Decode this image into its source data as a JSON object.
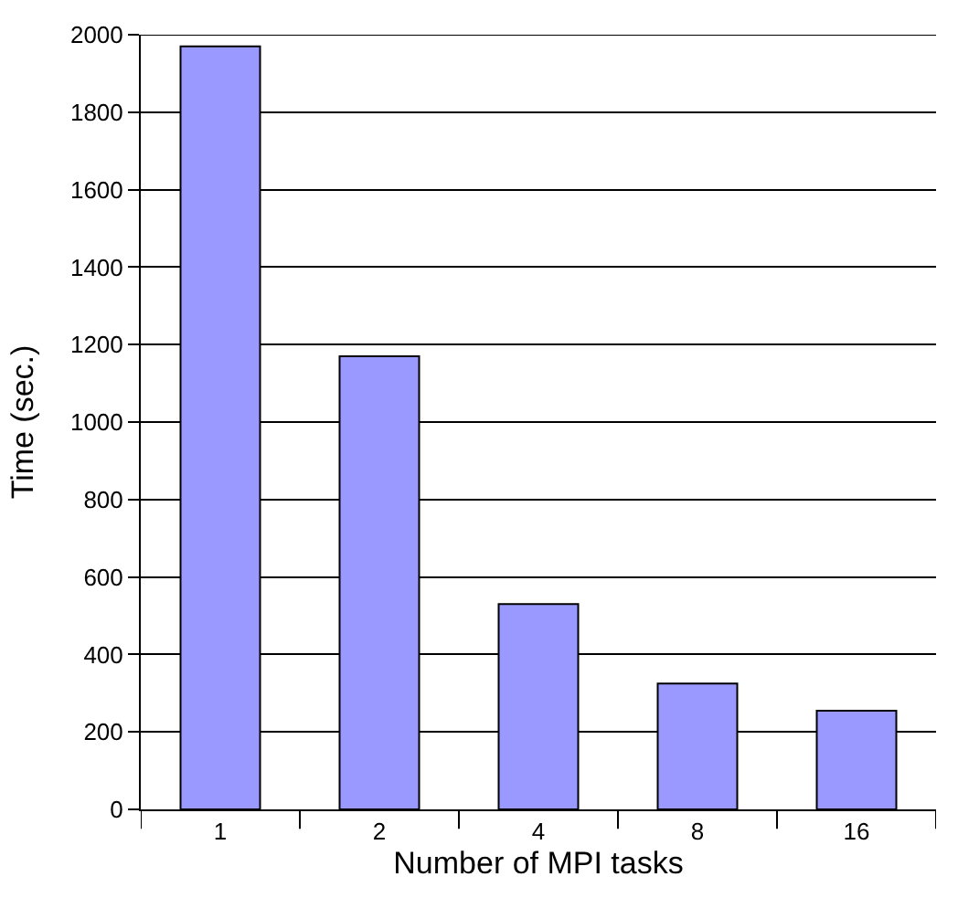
{
  "chart_data": {
    "type": "bar",
    "xlabel": "Number of MPI tasks",
    "ylabel": "Time (sec.)",
    "categories": [
      "1",
      "2",
      "4",
      "8",
      "16"
    ],
    "series": [
      {
        "color": "#9999ff",
        "values": [
          1970,
          1170,
          530,
          325,
          255
        ]
      }
    ],
    "ylim": [
      0,
      2000
    ],
    "yticks": [
      0,
      200,
      400,
      600,
      800,
      1000,
      1200,
      1400,
      1600,
      1800,
      2000
    ],
    "grid": "y"
  }
}
